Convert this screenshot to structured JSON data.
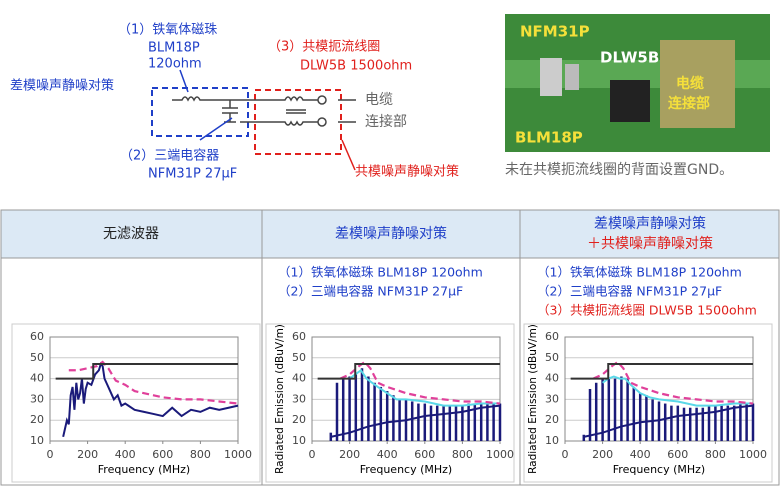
{
  "diagram": {
    "dm_label": "差模噪声静噪对策",
    "cm_label": "共模噪声静噪对策",
    "bead": [
      "（1）铁氧体磁珠",
      "BLM18P",
      "120ohm"
    ],
    "choke": [
      "（3）共模扼流线圈",
      "DLW5B 1500ohm"
    ],
    "cap": [
      "（2）三端电容器",
      "NFM31P 27μF"
    ],
    "cable": [
      "电缆",
      "连接部"
    ]
  },
  "photo": {
    "nfm": "NFM31P",
    "dlw": "DLW5B",
    "cable": [
      "电缆",
      "连接部"
    ],
    "blm": "BLM18P",
    "caption": "未在共模扼流线圈的背面设置GND。"
  },
  "table": {
    "headers": [
      "无滤波器",
      "差模噪声静噪对策",
      [
        "差模噪声静噪对策",
        "＋共模噪声静噪对策"
      ]
    ],
    "notes": [
      [],
      [
        "（1）铁氧体磁珠 BLM18P 120ohm",
        "（2）三端电容器 NFM31P 27μF"
      ],
      [
        "（1）铁氧体磁珠 BLM18P 120ohm",
        "（2）三端电容器 NFM31P 27μF",
        "（3）共模扼流线圈 DLW5B 1500ohm"
      ]
    ]
  },
  "chart_data": [
    {
      "type": "line",
      "xlabel": "Frequency (MHz)",
      "xlim": [
        0,
        1000
      ],
      "ylim": [
        10,
        60
      ],
      "xticks": [
        0,
        200,
        400,
        600,
        800,
        1000
      ],
      "yticks": [
        10,
        20,
        30,
        40,
        50,
        60
      ],
      "grid": true,
      "series": [
        {
          "color": "#1a1a7a",
          "x": [
            70,
            80,
            90,
            100,
            110,
            120,
            130,
            140,
            150,
            160,
            170,
            180,
            190,
            200,
            220,
            240,
            260,
            270,
            280,
            290,
            300,
            320,
            340,
            360,
            380,
            400,
            450,
            500,
            550,
            600,
            650,
            700,
            750,
            800,
            850,
            900,
            950,
            1000
          ],
          "values": [
            12,
            16,
            20,
            18,
            32,
            36,
            25,
            38,
            30,
            33,
            40,
            28,
            35,
            38,
            37,
            42,
            44,
            47,
            46,
            40,
            38,
            34,
            30,
            32,
            27,
            28,
            25,
            24,
            23,
            22,
            26,
            22,
            25,
            24,
            26,
            25,
            26,
            27
          ]
        },
        {
          "color": "#e0409a",
          "dash": true,
          "x": [
            100,
            150,
            200,
            250,
            280,
            310,
            350,
            400,
            450,
            500,
            600,
            700,
            800,
            900,
            1000
          ],
          "values": [
            44,
            44,
            45,
            46,
            48,
            45,
            39,
            37,
            34,
            33,
            31,
            30,
            30,
            29,
            28
          ]
        },
        {
          "color": "#333333",
          "x": [
            30,
            230,
            230,
            1000
          ],
          "values": [
            40,
            40,
            47,
            47
          ]
        }
      ]
    },
    {
      "type": "line",
      "ylabel": "Radiated Emission (dBuV/m)",
      "xlabel": "Frequency (MHz)",
      "xlim": [
        0,
        1000
      ],
      "ylim": [
        10,
        60
      ],
      "xticks": [
        0,
        200,
        400,
        600,
        800,
        1000
      ],
      "yticks": [
        10,
        20,
        30,
        40,
        50,
        60
      ],
      "grid": true,
      "series": [
        {
          "color": "#1a1a7a",
          "stem": true,
          "x": [
            100,
            133,
            166,
            200,
            233,
            266,
            300,
            333,
            366,
            400,
            433,
            466,
            500,
            533,
            566,
            600,
            633,
            666,
            700,
            733,
            766,
            800,
            833,
            866,
            900,
            933,
            966,
            1000
          ],
          "values": [
            14,
            38,
            40,
            41,
            42,
            45,
            41,
            38,
            36,
            34,
            32,
            30,
            30,
            29,
            28,
            28,
            27,
            27,
            27,
            27,
            27,
            27,
            28,
            28,
            28,
            28,
            28,
            28
          ]
        },
        {
          "color": "#1a1a7a",
          "x": [
            100,
            200,
            300,
            400,
            500,
            600,
            700,
            800,
            900,
            1000
          ],
          "values": [
            12,
            14,
            17,
            19,
            20,
            22,
            23,
            24,
            26,
            27
          ]
        },
        {
          "color": "#5ad8e8",
          "x": [
            200,
            230,
            260,
            290,
            320,
            350,
            400,
            450,
            500,
            600,
            700,
            800,
            900,
            1000
          ],
          "values": [
            40,
            42,
            44,
            40,
            38,
            36,
            33,
            30,
            30,
            29,
            27,
            27,
            28,
            28
          ]
        },
        {
          "color": "#e0409a",
          "dash": true,
          "x": [
            150,
            200,
            250,
            280,
            310,
            350,
            400,
            500,
            600,
            700,
            800,
            900,
            1000
          ],
          "values": [
            40,
            42,
            46,
            48,
            45,
            38,
            36,
            33,
            31,
            30,
            29,
            29,
            28
          ]
        },
        {
          "color": "#333333",
          "x": [
            30,
            230,
            230,
            1000
          ],
          "values": [
            40,
            40,
            47,
            47
          ]
        }
      ]
    },
    {
      "type": "line",
      "ylabel": "Radiated Emission (dBuV/m)",
      "xlabel": "Frequency (MHz)",
      "xlim": [
        0,
        1000
      ],
      "ylim": [
        10,
        60
      ],
      "xticks": [
        0,
        200,
        400,
        600,
        800,
        1000
      ],
      "yticks": [
        10,
        20,
        30,
        40,
        50,
        60
      ],
      "grid": true,
      "series": [
        {
          "color": "#1a1a7a",
          "stem": true,
          "x": [
            100,
            133,
            166,
            200,
            233,
            266,
            300,
            333,
            366,
            400,
            433,
            466,
            500,
            533,
            566,
            600,
            633,
            666,
            700,
            733,
            766,
            800,
            833,
            866,
            900,
            933,
            966,
            1000
          ],
          "values": [
            13,
            35,
            38,
            40,
            40,
            40,
            41,
            40,
            36,
            33,
            32,
            30,
            29,
            28,
            27,
            27,
            26,
            26,
            26,
            26,
            27,
            27,
            27,
            27,
            27,
            28,
            28,
            28
          ]
        },
        {
          "color": "#1a1a7a",
          "x": [
            100,
            200,
            300,
            400,
            500,
            600,
            700,
            800,
            900,
            1000
          ],
          "values": [
            12,
            14,
            17,
            19,
            20,
            22,
            23,
            24,
            26,
            27
          ]
        },
        {
          "color": "#5ad8e8",
          "x": [
            200,
            230,
            260,
            290,
            320,
            350,
            400,
            450,
            500,
            600,
            700,
            800,
            900,
            1000
          ],
          "values": [
            38,
            40,
            41,
            40,
            40,
            37,
            33,
            31,
            30,
            29,
            27,
            27,
            28,
            28
          ]
        },
        {
          "color": "#e0409a",
          "dash": true,
          "x": [
            150,
            200,
            250,
            280,
            310,
            350,
            400,
            500,
            600,
            700,
            800,
            900,
            1000
          ],
          "values": [
            40,
            42,
            46,
            48,
            45,
            38,
            36,
            33,
            31,
            30,
            29,
            29,
            28
          ]
        },
        {
          "color": "#333333",
          "x": [
            30,
            230,
            230,
            1000
          ],
          "values": [
            40,
            40,
            47,
            47
          ]
        }
      ]
    }
  ]
}
